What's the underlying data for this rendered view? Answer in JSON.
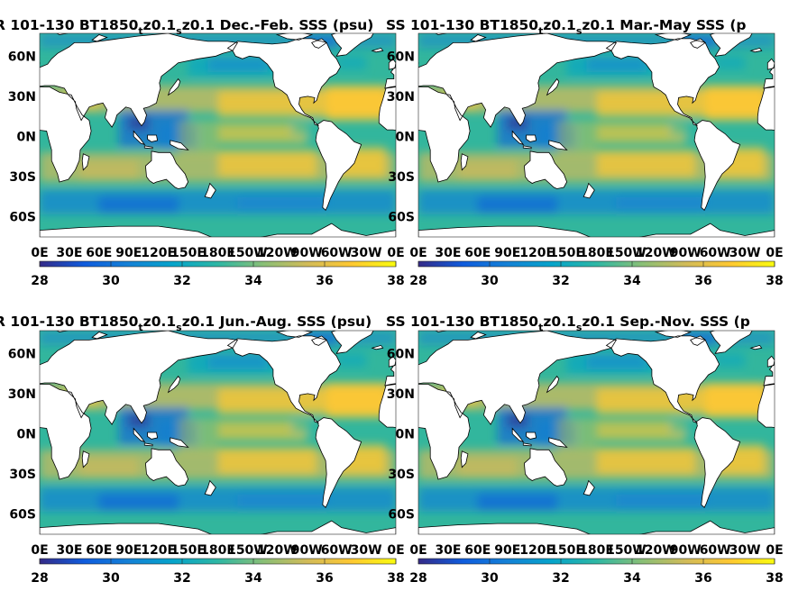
{
  "chart_data": [
    {
      "type": "heatmap",
      "title": "R 101-130 BT1850",
      "title_sub1": "t",
      "title_mid": "z0.1",
      "title_sub2": "s",
      "title_tail": "z0.1 Dec.-Feb. SSS (psu)",
      "x_ticks": [
        "0E",
        "30E",
        "60E",
        "90E",
        "120E",
        "150E",
        "180E",
        "150W",
        "120W",
        "90W",
        "60W",
        "30W",
        "0E"
      ],
      "y_ticks": [
        "60N",
        "30N",
        "0N",
        "30S",
        "60S"
      ],
      "y_tick_values": [
        60,
        30,
        0,
        -30,
        -60
      ],
      "colorbar": {
        "ticks": [
          "28",
          "30",
          "32",
          "34",
          "36",
          "38"
        ],
        "min": 28,
        "max": 38
      }
    },
    {
      "type": "heatmap",
      "title": "SS 101-130 BT1850",
      "title_sub1": "t",
      "title_mid": "z0.1",
      "title_sub2": "s",
      "title_tail": "z0.1 Mar.-May SSS (p",
      "x_ticks": [
        "0E",
        "30E",
        "60E",
        "90E",
        "120E",
        "150E",
        "180E",
        "150W",
        "120W",
        "90W",
        "60W",
        "30W",
        "0E"
      ],
      "y_ticks": [
        "60N",
        "30N",
        "0N",
        "30S",
        "60S"
      ],
      "y_tick_values": [
        60,
        30,
        0,
        -30,
        -60
      ],
      "colorbar": {
        "ticks": [
          "28",
          "30",
          "32",
          "34",
          "36",
          "38"
        ],
        "min": 28,
        "max": 38
      }
    },
    {
      "type": "heatmap",
      "title": "R 101-130 BT1850",
      "title_sub1": "t",
      "title_mid": "z0.1",
      "title_sub2": "s",
      "title_tail": "z0.1 Jun.-Aug. SSS (psu)",
      "x_ticks": [
        "0E",
        "30E",
        "60E",
        "90E",
        "120E",
        "150E",
        "180E",
        "150W",
        "120W",
        "90W",
        "60W",
        "30W",
        "0E"
      ],
      "y_ticks": [
        "60N",
        "30N",
        "0N",
        "30S",
        "60S"
      ],
      "y_tick_values": [
        60,
        30,
        0,
        -30,
        -60
      ],
      "colorbar": {
        "ticks": [
          "28",
          "30",
          "32",
          "34",
          "36",
          "38"
        ],
        "min": 28,
        "max": 38
      }
    },
    {
      "type": "heatmap",
      "title": "SS 101-130 BT1850",
      "title_sub1": "t",
      "title_mid": "z0.1",
      "title_sub2": "s",
      "title_tail": "z0.1 Sep.-Nov. SSS (p",
      "x_ticks": [
        "0E",
        "30E",
        "60E",
        "90E",
        "120E",
        "150E",
        "180E",
        "150W",
        "120W",
        "90W",
        "60W",
        "30W",
        "0E"
      ],
      "y_ticks": [
        "60N",
        "30N",
        "0N",
        "30S",
        "60S"
      ],
      "y_tick_values": [
        60,
        30,
        0,
        -30,
        -60
      ],
      "colorbar": {
        "ticks": [
          "28",
          "30",
          "32",
          "34",
          "36",
          "38"
        ],
        "min": 28,
        "max": 38
      }
    }
  ],
  "colors": {
    "parula": [
      "#352a87",
      "#0f5cdd",
      "#1481d6",
      "#06a4ca",
      "#2eb7a4",
      "#87bf77",
      "#d1bb59",
      "#fec832",
      "#f9fb0e"
    ],
    "land": "#ffffff",
    "coast": "#000000"
  }
}
